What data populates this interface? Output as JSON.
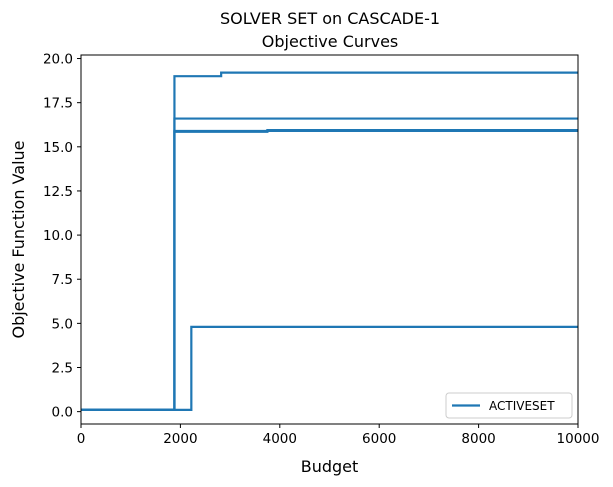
{
  "chart_data": {
    "type": "line",
    "title": [
      "SOLVER SET on CASCADE-1",
      "Objective Curves"
    ],
    "xlabel": "Budget",
    "ylabel": "Objective Function Value",
    "xlim": [
      0,
      10000
    ],
    "ylim": [
      -0.7,
      20.2
    ],
    "xticks": [
      0,
      2000,
      4000,
      6000,
      8000,
      10000
    ],
    "xtick_labels": [
      "0",
      "2000",
      "4000",
      "6000",
      "8000",
      "10000"
    ],
    "yticks": [
      0.0,
      2.5,
      5.0,
      7.5,
      10.0,
      12.5,
      15.0,
      17.5,
      20.0
    ],
    "ytick_labels": [
      "0.0",
      "2.5",
      "5.0",
      "7.5",
      "10.0",
      "12.5",
      "15.0",
      "17.5",
      "20.0"
    ],
    "grid": false,
    "legend": {
      "entries": [
        "ACTIVESET"
      ],
      "placement": "lower-right"
    },
    "color": "#1f77b4",
    "series": [
      {
        "x": [
          0,
          1880,
          1880,
          2820,
          2820,
          10000
        ],
        "y": [
          0.1,
          0.1,
          19.0,
          19.0,
          19.2,
          19.2
        ]
      },
      {
        "x": [
          0,
          1880,
          1880,
          10000
        ],
        "y": [
          0.1,
          0.1,
          16.6,
          16.6
        ]
      },
      {
        "x": [
          0,
          1880,
          1880,
          3750,
          3750,
          10000
        ],
        "y": [
          0.1,
          0.1,
          15.85,
          15.85,
          15.95,
          15.95
        ]
      },
      {
        "x": [
          0,
          1880,
          1880,
          10000
        ],
        "y": [
          0.1,
          0.1,
          15.9,
          15.9
        ]
      },
      {
        "x": [
          0,
          2220,
          2220,
          10000
        ],
        "y": [
          0.1,
          0.1,
          4.8,
          4.8
        ]
      }
    ]
  }
}
